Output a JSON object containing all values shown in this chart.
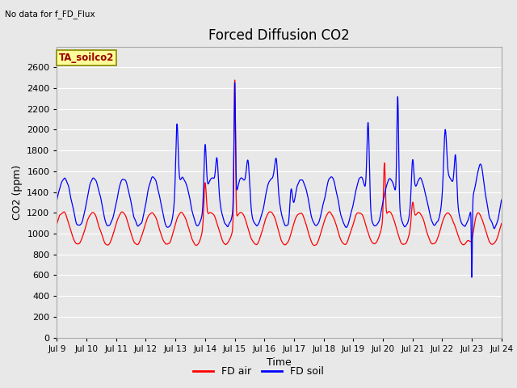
{
  "title": "Forced Diffusion CO2",
  "top_left_text": "No data for f_FD_Flux",
  "annotation_box": "TA_soilco2",
  "xlabel": "Time",
  "ylabel": "CO2 (ppm)",
  "ylim": [
    0,
    2800
  ],
  "yticks": [
    0,
    200,
    400,
    600,
    800,
    1000,
    1200,
    1400,
    1600,
    1800,
    2000,
    2200,
    2400,
    2600
  ],
  "xtick_labels": [
    "Jul 9",
    "Jul 10",
    "Jul 11",
    "Jul 12",
    "Jul 13",
    "Jul 14",
    "Jul 15",
    "Jul 16",
    "Jul 17",
    "Jul 18",
    "Jul 19",
    "Jul 20",
    "Jul 21",
    "Jul 22",
    "Jul 23",
    "Jul 24"
  ],
  "background_color": "#e8e8e8",
  "plot_bg_color": "#e8e8e8",
  "grid_color": "#ffffff",
  "fd_air_color": "red",
  "fd_soil_color": "blue",
  "legend_entries": [
    "FD air",
    "FD soil"
  ],
  "title_fontsize": 12,
  "axis_label_fontsize": 9,
  "figsize": [
    6.4,
    4.8
  ],
  "dpi": 100
}
